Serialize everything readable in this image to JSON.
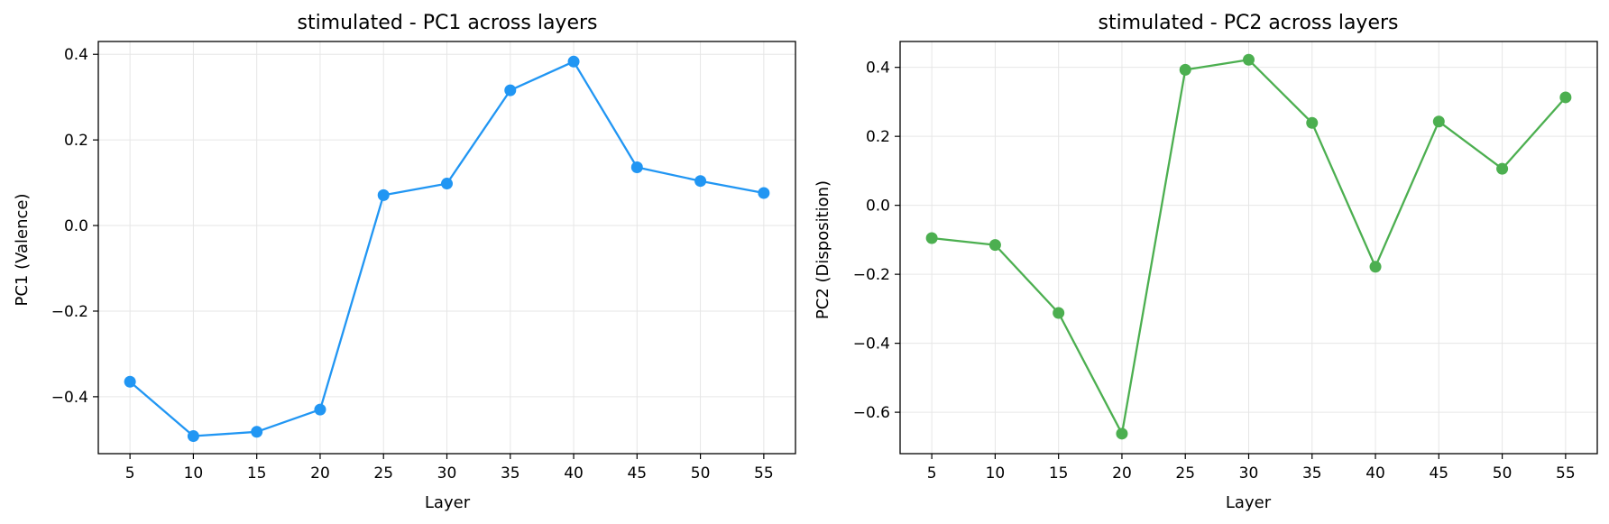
{
  "chart_data": [
    {
      "type": "line",
      "title": "stimulated - PC1 across layers",
      "xlabel": "Layer",
      "ylabel": "PC1 (Valence)",
      "x": [
        5,
        10,
        15,
        20,
        25,
        30,
        35,
        40,
        45,
        50,
        55
      ],
      "xticks": [
        "5",
        "10",
        "15",
        "20",
        "25",
        "30",
        "35",
        "40",
        "45",
        "50",
        "55"
      ],
      "yticks": [
        {
          "v": -0.4,
          "label": "−0.4"
        },
        {
          "v": -0.2,
          "label": "−0.2"
        },
        {
          "v": 0.0,
          "label": "0.0"
        },
        {
          "v": 0.2,
          "label": "0.2"
        },
        {
          "v": 0.4,
          "label": "0.4"
        }
      ],
      "xlim": [
        2.5,
        57.5
      ],
      "ylim": [
        -0.533,
        0.43
      ],
      "grid": true,
      "series": [
        {
          "color": "#2196F3",
          "values": [
            -0.365,
            -0.492,
            -0.482,
            -0.43,
            0.071,
            0.098,
            0.316,
            0.383,
            0.136,
            0.104,
            0.076
          ]
        }
      ]
    },
    {
      "type": "line",
      "title": "stimulated - PC2 across layers",
      "xlabel": "Layer",
      "ylabel": "PC2 (Disposition)",
      "x": [
        5,
        10,
        15,
        20,
        25,
        30,
        35,
        40,
        45,
        50,
        55
      ],
      "xticks": [
        "5",
        "10",
        "15",
        "20",
        "25",
        "30",
        "35",
        "40",
        "45",
        "50",
        "55"
      ],
      "yticks": [
        {
          "v": -0.6,
          "label": "−0.6"
        },
        {
          "v": -0.4,
          "label": "−0.4"
        },
        {
          "v": -0.2,
          "label": "−0.2"
        },
        {
          "v": 0.0,
          "label": "0.0"
        },
        {
          "v": 0.2,
          "label": "0.2"
        },
        {
          "v": 0.4,
          "label": "0.4"
        }
      ],
      "xlim": [
        2.5,
        57.5
      ],
      "ylim": [
        -0.72,
        0.475
      ],
      "grid": true,
      "series": [
        {
          "color": "#4CAF50",
          "values": [
            -0.095,
            -0.115,
            -0.312,
            -0.662,
            0.393,
            0.422,
            0.239,
            -0.178,
            0.243,
            0.106,
            0.313
          ]
        }
      ]
    }
  ]
}
